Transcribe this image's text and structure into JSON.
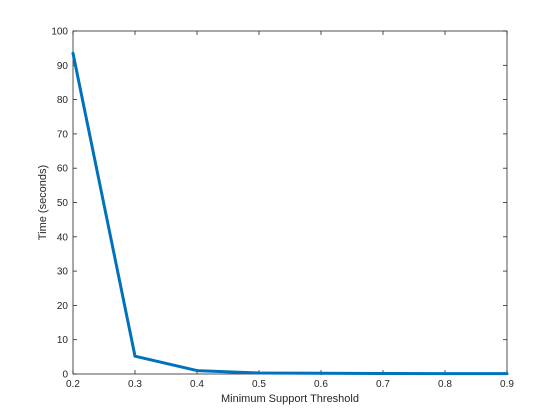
{
  "chart_data": {
    "type": "line",
    "title": "",
    "xlabel": "Minimum Support Threshold",
    "ylabel": "Time (seconds)",
    "xlim": [
      0.2,
      0.9
    ],
    "ylim": [
      0,
      100
    ],
    "xticks": [
      "0.2",
      "0.3",
      "0.4",
      "0.5",
      "0.6",
      "0.7",
      "0.8",
      "0.9"
    ],
    "yticks": [
      "0",
      "10",
      "20",
      "30",
      "40",
      "50",
      "60",
      "70",
      "80",
      "90",
      "100"
    ],
    "grid": false,
    "legend": "none",
    "series": [
      {
        "color": "#0072BD",
        "x": [
          0.2,
          0.3,
          0.4,
          0.5,
          0.6,
          0.7,
          0.8,
          0.9
        ],
        "y": [
          93.5,
          5.2,
          1.0,
          0.3,
          0.2,
          0.15,
          0.12,
          0.1
        ]
      }
    ]
  }
}
